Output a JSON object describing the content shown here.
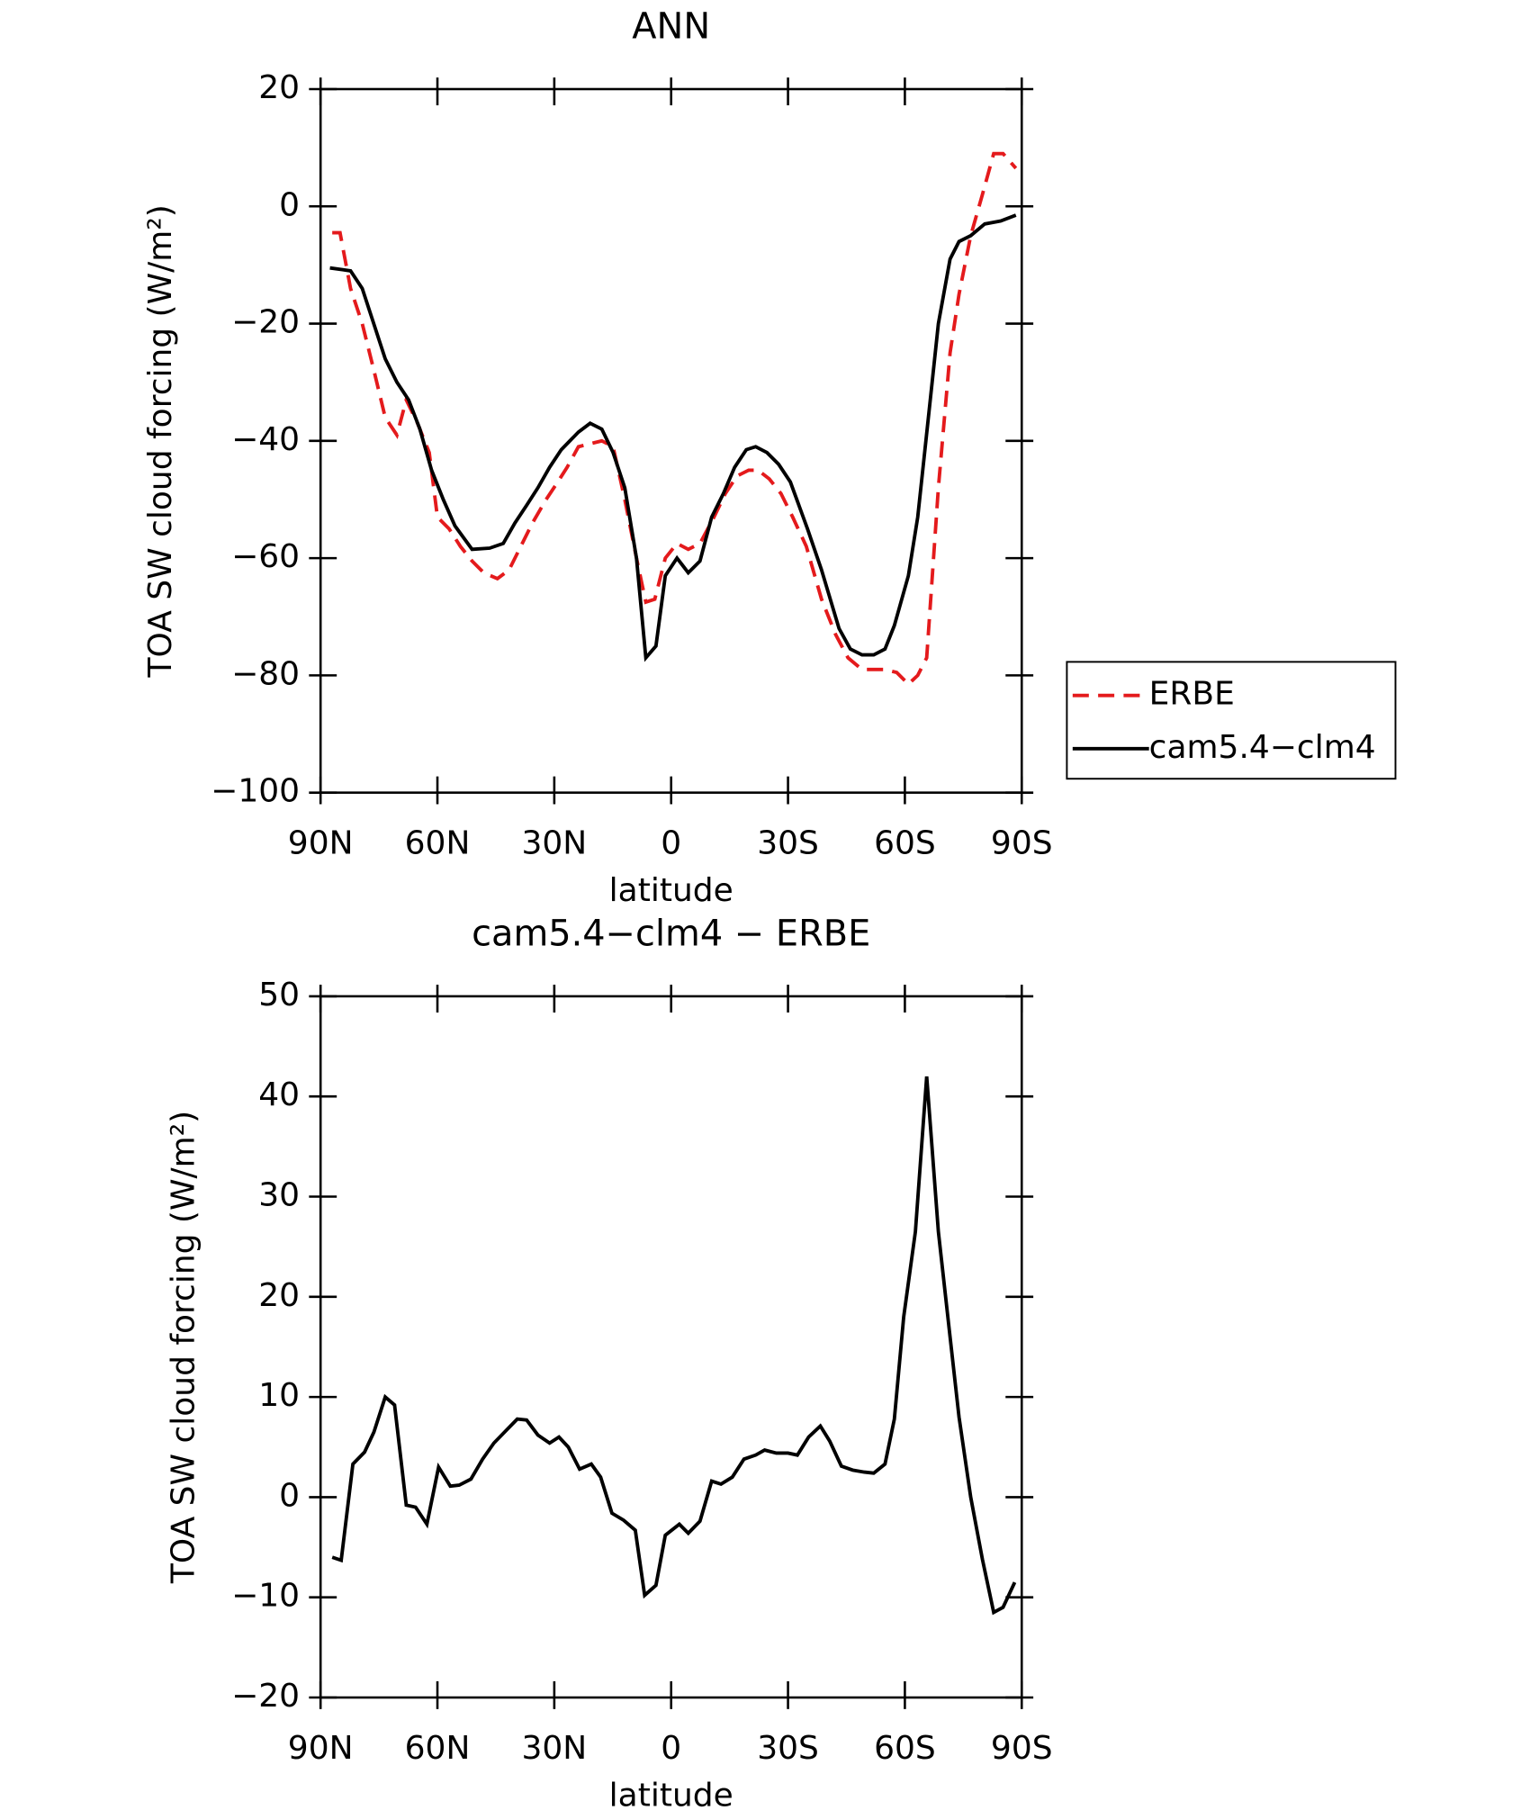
{
  "chart_data": [
    {
      "type": "line",
      "title": "ANN",
      "x_label": "latitude",
      "y_label": "TOA SW cloud forcing (W/m²)",
      "xlim": [
        90,
        -90
      ],
      "xticks": [
        {
          "value": 90,
          "label": "90N"
        },
        {
          "value": 60,
          "label": "60N"
        },
        {
          "value": 30,
          "label": "30N"
        },
        0,
        {
          "value": -30,
          "label": "30S"
        },
        {
          "value": -60,
          "label": "60S"
        },
        {
          "value": -90,
          "label": "90S"
        }
      ],
      "ylim": [
        -100,
        20
      ],
      "yticks": [
        {
          "value": -100,
          "label": "−100"
        },
        {
          "value": -80,
          "label": "−80"
        },
        {
          "value": -60,
          "label": "−60"
        },
        {
          "value": -40,
          "label": "−40"
        },
        {
          "value": -20,
          "label": "−20"
        },
        0,
        20
      ],
      "legend": "right",
      "series": [
        {
          "name": "ERBE",
          "color": "#e41a1c",
          "dash": true,
          "x": [
            87.0,
            85.0,
            82.3,
            79.3,
            76.3,
            73.4,
            70.4,
            68.0,
            65.1,
            62.1,
            60.0,
            57.0,
            54.1,
            51.1,
            48.1,
            44.6,
            41.6,
            38.6,
            35.6,
            32.1,
            29.1,
            26.7,
            23.8,
            20.8,
            17.8,
            14.9,
            11.9,
            8.9,
            6.5,
            4.2,
            1.5,
            -1.5,
            -4.4,
            -7.4,
            -11.0,
            -13.9,
            -16.9,
            -19.9,
            -22.3,
            -25.2,
            -28.2,
            -31.2,
            -34.7,
            -38.6,
            -42.2,
            -45.4,
            -49.0,
            -52.0,
            -54.9,
            -57.9,
            -60.9,
            -63.3,
            -65.6,
            -68.6,
            -71.6,
            -73.9,
            -76.9,
            -79.9,
            -82.8,
            -85.2,
            -88.5
          ],
          "values": [
            -4.5,
            -4.5,
            -14,
            -20,
            -28,
            -36,
            -39,
            -33,
            -37,
            -42,
            -53,
            -55,
            -58,
            -60.5,
            -62.5,
            -63.5,
            -62,
            -58,
            -54,
            -50,
            -47,
            -44.5,
            -41,
            -40.5,
            -40,
            -41,
            -50,
            -60,
            -67.5,
            -67,
            -60,
            -57.5,
            -58.5,
            -57.5,
            -53,
            -49,
            -46,
            -45,
            -45,
            -46.5,
            -49,
            -53,
            -58,
            -67,
            -73,
            -77,
            -79,
            -79,
            -79,
            -79.5,
            -81.5,
            -80,
            -77,
            -48,
            -25,
            -15,
            -5,
            2,
            9,
            9,
            6.5
          ]
        },
        {
          "name": "cam5.4−clm4",
          "color": "#000000",
          "dash": false,
          "x": [
            87.6,
            82.3,
            79.3,
            73.4,
            70.4,
            67.4,
            64.5,
            61.5,
            58.5,
            55.5,
            51.1,
            46.6,
            43.1,
            40.1,
            37.1,
            34.2,
            31.2,
            28.2,
            23.8,
            20.8,
            17.8,
            14.9,
            11.9,
            8.9,
            6.5,
            3.9,
            1.5,
            -1.5,
            -4.4,
            -7.4,
            -10.4,
            -13.4,
            -16.3,
            -19.3,
            -21.7,
            -24.6,
            -27.6,
            -30.6,
            -35.0,
            -38.6,
            -43.1,
            -46.0,
            -49.0,
            -52.0,
            -54.9,
            -57.3,
            -60.9,
            -63.3,
            -66.2,
            -68.6,
            -71.6,
            -73.9,
            -76.9,
            -80.5,
            -84.6,
            -88.5
          ],
          "values": [
            -10.5,
            -11,
            -14,
            -26,
            -30,
            -33,
            -38,
            -45,
            -50,
            -54.5,
            -58.5,
            -58.3,
            -57.5,
            -54,
            -51,
            -48,
            -44.5,
            -41.5,
            -38.5,
            -37,
            -38,
            -42,
            -48,
            -60,
            -77,
            -75,
            -63,
            -60,
            -62.5,
            -60.5,
            -53,
            -49,
            -44.5,
            -41.5,
            -41,
            -42,
            -44,
            -47,
            -55,
            -62,
            -72,
            -75.5,
            -76.5,
            -76.5,
            -75.5,
            -71.5,
            -63,
            -53,
            -35,
            -20,
            -9,
            -6,
            -5,
            -3,
            -2.5,
            -1.5
          ]
        }
      ]
    },
    {
      "type": "line",
      "title": "cam5.4−clm4 − ERBE",
      "x_label": "latitude",
      "y_label": "TOA SW cloud forcing (W/m²)",
      "xlim": [
        90,
        -90
      ],
      "xticks": [
        {
          "value": 90,
          "label": "90N"
        },
        {
          "value": 60,
          "label": "60N"
        },
        {
          "value": 30,
          "label": "30N"
        },
        0,
        {
          "value": -30,
          "label": "30S"
        },
        {
          "value": -60,
          "label": "60S"
        },
        {
          "value": -90,
          "label": "90S"
        }
      ],
      "ylim": [
        -20,
        50
      ],
      "yticks": [
        {
          "value": -20,
          "label": "−20"
        },
        {
          "value": -10,
          "label": "−10"
        },
        0,
        10,
        20,
        30,
        40,
        50
      ],
      "series": [
        {
          "color": "#000000",
          "dash": false,
          "x": [
            87.0,
            84.7,
            81.7,
            78.7,
            76.3,
            73.4,
            71.0,
            68.0,
            65.6,
            62.7,
            59.7,
            56.7,
            54.4,
            51.4,
            48.4,
            45.5,
            42.5,
            39.5,
            37.1,
            34.2,
            31.2,
            28.8,
            26.4,
            23.5,
            20.5,
            18.1,
            15.2,
            12.2,
            9.2,
            6.8,
            3.9,
            1.5,
            -2.1,
            -4.4,
            -7.4,
            -10.4,
            -12.8,
            -15.7,
            -18.7,
            -21.7,
            -24.0,
            -27.0,
            -30.0,
            -32.4,
            -35.3,
            -38.3,
            -40.7,
            -43.7,
            -46.6,
            -49.6,
            -52.0,
            -54.9,
            -57.3,
            -59.7,
            -62.7,
            -65.6,
            -68.6,
            -71.6,
            -73.9,
            -76.9,
            -79.9,
            -82.8,
            -85.2,
            -88.2
          ],
          "values": [
            -6,
            -6.3,
            3.3,
            4.5,
            6.5,
            10,
            9.2,
            -0.8,
            -1,
            -2.7,
            3,
            1.1,
            1.2,
            1.8,
            3.8,
            5.4,
            6.6,
            7.8,
            7.7,
            6.2,
            5.4,
            6,
            5,
            2.8,
            3.3,
            2,
            -1.6,
            -2.3,
            -3.3,
            -9.8,
            -8.8,
            -3.8,
            -2.7,
            -3.6,
            -2.4,
            1.6,
            1.3,
            2,
            3.8,
            4.2,
            4.7,
            4.4,
            4.4,
            4.2,
            6,
            7.1,
            5.6,
            3.1,
            2.7,
            2.5,
            2.4,
            3.3,
            7.8,
            18,
            26.5,
            42,
            26.5,
            16,
            8,
            0,
            -6.2,
            -11.5,
            -11,
            -8.5
          ]
        }
      ]
    }
  ]
}
